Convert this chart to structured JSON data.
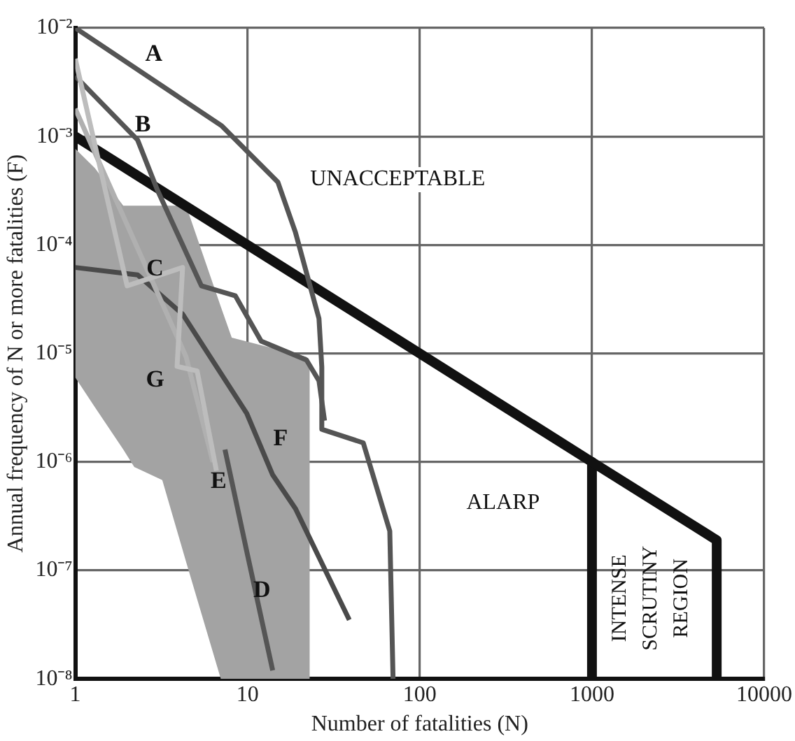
{
  "chart_data": {
    "type": "line",
    "xlabel": "Number of fatalities (N)",
    "ylabel": "Annual frequency of N or more fatalities (F)",
    "log": "xy",
    "grid": true,
    "legend": false,
    "marker": "none",
    "line_style": "solid",
    "xlim": [
      1,
      10000
    ],
    "ylim": [
      1e-08,
      0.01
    ],
    "xticks": [
      1,
      10,
      100,
      1000,
      10000
    ],
    "yticks": [
      {
        "value": 1e-08,
        "label": "10⁻⁸"
      },
      {
        "value": 1e-07,
        "label": "10⁻⁷"
      },
      {
        "value": 1e-06,
        "label": "10⁻⁶"
      },
      {
        "value": 1e-05,
        "label": "10⁻⁵"
      },
      {
        "value": 0.0001,
        "label": "10⁻⁴"
      },
      {
        "value": 0.001,
        "label": "10⁻³"
      },
      {
        "value": 0.01,
        "label": "10⁻²"
      }
    ],
    "series": [
      {
        "type": "area",
        "color": "#a3a3a3",
        "x": [
          1,
          1.3,
          1.9,
          2.2,
          3.2,
          4.4,
          7,
          8.1,
          22,
          23
        ],
        "values": [
          null,
          null,
          null,
          null,
          null,
          null,
          null,
          null,
          null,
          null
        ],
        "lower": [
          6e-06,
          3.2e-06,
          1.3e-06,
          9e-07,
          6.8e-07,
          1.2e-07,
          1e-08,
          1e-08,
          1e-08,
          1e-08
        ],
        "upper": [
          0.00077,
          0.00051,
          0.00023,
          0.00023,
          0.00023,
          0.00023,
          2.7e-05,
          1.4e-05,
          9.3e-06,
          8e-06
        ]
      },
      {
        "name": "C",
        "color": "#bdbdbd",
        "x": [
          1,
          2,
          4.2,
          3.9,
          5.1,
          6.6
        ],
        "values": [
          0.0052,
          4.2e-05,
          6.2e-05,
          7.6e-06,
          6.9e-06,
          8.3e-07
        ]
      },
      {
        "name": "E",
        "color": "#b0b0b0",
        "x": [
          1,
          4.4,
          6.3
        ],
        "values": [
          0.0018,
          9.3e-06,
          1e-06
        ]
      },
      {
        "name": "D",
        "color": "#555555",
        "x": [
          7.4,
          9.9,
          14
        ],
        "values": [
          1.3e-06,
          1.5e-07,
          1.2e-08
        ]
      },
      {
        "name": "F",
        "color": "#4a4a4a",
        "x": [
          1,
          2.3,
          4.2,
          9.9,
          14,
          19,
          39
        ],
        "values": [
          6.2e-05,
          5.3e-05,
          2.3e-05,
          2.8e-06,
          7.6e-07,
          3.7e-07,
          3.5e-08
        ]
      },
      {
        "name": "B",
        "color": "#555555",
        "x": [
          1,
          2.3,
          3,
          5.4,
          8.5,
          12,
          22,
          26,
          28
        ],
        "values": [
          0.0036,
          0.00093,
          0.00032,
          4.2e-05,
          3.4e-05,
          1.3e-05,
          8.7e-06,
          5.6e-06,
          2.4e-06
        ]
      },
      {
        "name": "A",
        "color": "#555555",
        "x": [
          1,
          7.1,
          15,
          19,
          26,
          27,
          27,
          47,
          67,
          70
        ],
        "values": [
          0.01,
          0.00125,
          0.00038,
          0.00013,
          2.1e-05,
          7.5e-06,
          2e-06,
          1.5e-06,
          2.3e-07,
          1e-08
        ]
      },
      {
        "color": "#111111",
        "x": [
          1,
          1000,
          5300,
          5300
        ],
        "values": [
          0.001,
          1e-06,
          1.9e-07,
          1e-08
        ]
      },
      {
        "color": "#111111",
        "x": [
          1000,
          1000
        ],
        "values": [
          1e-06,
          1e-08
        ]
      }
    ],
    "annotations": [
      "G",
      "UNACCEPTABLE",
      "ALARP",
      "INTENSE SCRUTINY REGION"
    ]
  }
}
